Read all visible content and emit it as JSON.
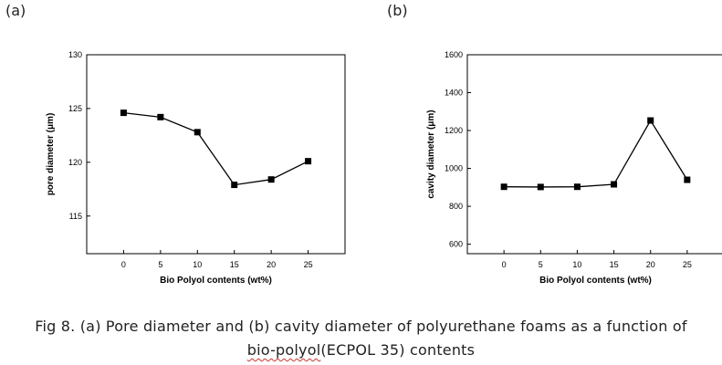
{
  "panel_labels": [
    "(a)",
    "(b)"
  ],
  "chart_data": [
    {
      "type": "line",
      "panel": "(a)",
      "title": "",
      "xlabel": "Bio Polyol contents (wt%)",
      "ylabel": "pore diameter (μm)",
      "x": [
        0,
        5,
        10,
        15,
        20,
        25
      ],
      "values": [
        124.6,
        124.2,
        122.8,
        117.9,
        118.4,
        120.1
      ],
      "xlim": [
        -5,
        30
      ],
      "ylim": [
        111.5,
        130
      ],
      "xticks": [
        0,
        5,
        10,
        15,
        20,
        25
      ],
      "yticks": [
        115,
        120,
        125,
        130
      ],
      "marker": "square",
      "grid": false,
      "legend": "none"
    },
    {
      "type": "line",
      "panel": "(b)",
      "title": "",
      "xlabel": "Bio Polyol contents (wt%)",
      "ylabel": "cavity diameter (μm)",
      "x": [
        0,
        5,
        10,
        15,
        20,
        25
      ],
      "values": [
        903,
        902,
        903,
        916,
        1253,
        940
      ],
      "xlim": [
        -5,
        30
      ],
      "ylim": [
        550,
        1600
      ],
      "xticks": [
        0,
        5,
        10,
        15,
        20,
        25
      ],
      "yticks": [
        600,
        800,
        1000,
        1200,
        1400,
        1600
      ],
      "marker": "square",
      "grid": false,
      "legend": "none"
    }
  ],
  "caption": {
    "line1": "Fig 8. (a) Pore diameter and (b) cavity diameter of polyurethane foams as a function of",
    "line2_word": "bio-polyol",
    "line2_rest": "(ECPOL 35) contents"
  }
}
